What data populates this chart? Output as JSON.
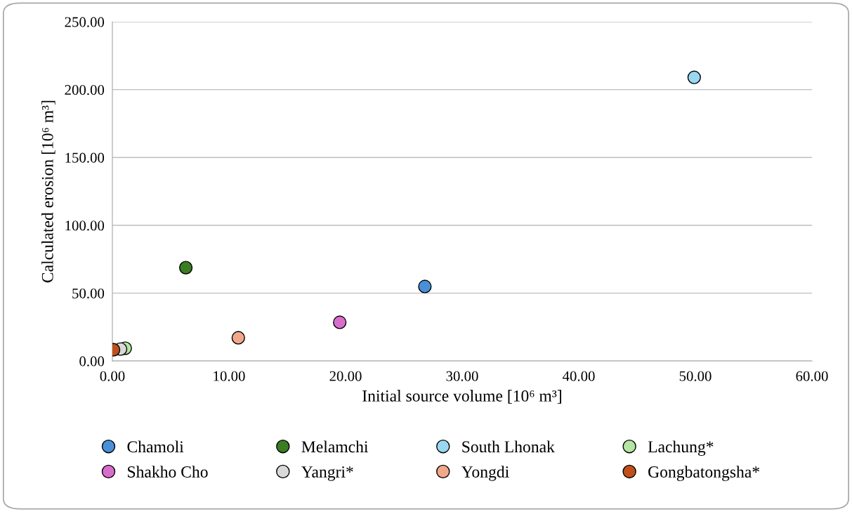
{
  "chart_data": {
    "type": "scatter",
    "xlabel": "Initial source volume [10⁶ m³]",
    "ylabel": "Calculated erosion [10⁶ m³]",
    "xlim": [
      0,
      60
    ],
    "xticks": [
      {
        "value": 0,
        "label": "0.00"
      },
      {
        "value": 10,
        "label": "10.00"
      },
      {
        "value": 20,
        "label": "20.00"
      },
      {
        "value": 30,
        "label": "30.00"
      },
      {
        "value": 40,
        "label": "40.00"
      },
      {
        "value": 50,
        "label": "50.00"
      },
      {
        "value": 60,
        "label": "60.00"
      }
    ],
    "ylim": [
      0,
      250
    ],
    "yticks": [
      {
        "value": 0,
        "label": "0.00"
      },
      {
        "value": 50,
        "label": "50.00"
      },
      {
        "value": 100,
        "label": "100.00"
      },
      {
        "value": 150,
        "label": "150.00"
      },
      {
        "value": 200,
        "label": "200.00"
      },
      {
        "value": 250,
        "label": "250.00"
      }
    ],
    "grid": "y",
    "legend": "bottom",
    "marker": "circle",
    "series": [
      {
        "name": "Chamoli",
        "color": "#4a90d9",
        "x": [
          26.8
        ],
        "values": [
          54.9
        ]
      },
      {
        "name": "Melamchi",
        "color": "#3a7d22",
        "x": [
          6.3
        ],
        "values": [
          68.8
        ]
      },
      {
        "name": "South Lhonak",
        "color": "#9ad8f2",
        "x": [
          49.9
        ],
        "values": [
          209
        ]
      },
      {
        "name": "Lachung*",
        "color": "#b4e5a2",
        "x": [
          1.1
        ],
        "values": [
          9.4
        ]
      },
      {
        "name": "Shakho Cho",
        "color": "#d86ecc",
        "x": [
          19.5
        ],
        "values": [
          28.5
        ]
      },
      {
        "name": "Yangri*",
        "color": "#d9d9d9",
        "x": [
          0.7
        ],
        "values": [
          8.8
        ]
      },
      {
        "name": "Yongdi",
        "color": "#f1a88a",
        "x": [
          10.8
        ],
        "values": [
          17.1
        ]
      },
      {
        "name": "Gongbatongsha*",
        "color": "#c0501b",
        "x": [
          0.1
        ],
        "values": [
          8.3
        ]
      }
    ]
  }
}
